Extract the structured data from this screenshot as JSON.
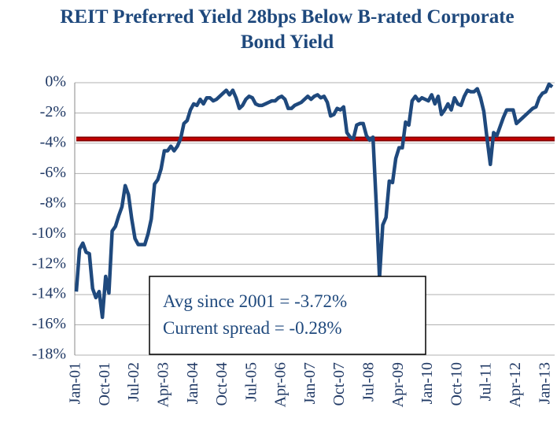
{
  "chart_data": {
    "type": "line",
    "title": "REIT Preferred Yield 28bps Below B-rated Corporate Bond Yield",
    "categories": [
      "Jan-01",
      null,
      null,
      null,
      null,
      null,
      null,
      null,
      null,
      "Oct-01",
      null,
      null,
      null,
      null,
      null,
      null,
      null,
      null,
      "Jul-02",
      null,
      null,
      null,
      null,
      null,
      null,
      null,
      null,
      "Apr-03",
      null,
      null,
      null,
      null,
      null,
      null,
      null,
      null,
      "Jan-04",
      null,
      null,
      null,
      null,
      null,
      null,
      null,
      null,
      "Oct-04",
      null,
      null,
      null,
      null,
      null,
      null,
      null,
      null,
      "Jul-05",
      null,
      null,
      null,
      null,
      null,
      null,
      null,
      null,
      "Apr-06",
      null,
      null,
      null,
      null,
      null,
      null,
      null,
      null,
      "Jan-07",
      null,
      null,
      null,
      null,
      null,
      null,
      null,
      null,
      "Oct-07",
      null,
      null,
      null,
      null,
      null,
      null,
      null,
      null,
      "Jul-08",
      null,
      null,
      null,
      null,
      null,
      null,
      null,
      null,
      "Apr-09",
      null,
      null,
      null,
      null,
      null,
      null,
      null,
      null,
      "Jan-10",
      null,
      null,
      null,
      null,
      null,
      null,
      null,
      null,
      "Oct-10",
      null,
      null,
      null,
      null,
      null,
      null,
      null,
      null,
      "Jul-11",
      null,
      null,
      null,
      null,
      null,
      null,
      null,
      null,
      "Apr-12",
      null,
      null,
      null,
      null,
      null,
      null,
      null,
      null,
      "Jan-13",
      null,
      null
    ],
    "series": [
      {
        "color": "#1f497d",
        "values": [
          -13.8,
          -11,
          -10.6,
          -11.2,
          -11.3,
          -13.6,
          -14.2,
          -13.8,
          -15.5,
          -12.8,
          -13.9,
          -9.8,
          -9.5,
          -8.8,
          -8.2,
          -6.8,
          -7.4,
          -9,
          -10.3,
          -10.7,
          -10.7,
          -10.7,
          -10,
          -9,
          -6.7,
          -6.4,
          -5.7,
          -4.5,
          -4.5,
          -4.2,
          -4.5,
          -4.2,
          -3.7,
          -2.7,
          -2.5,
          -1.8,
          -1.4,
          -1.5,
          -1.1,
          -1.4,
          -1,
          -1,
          -1.2,
          -1.1,
          -0.9,
          -0.7,
          -0.5,
          -0.8,
          -0.5,
          -1,
          -1.7,
          -1.5,
          -1.1,
          -0.9,
          -1,
          -1.4,
          -1.5,
          -1.5,
          -1.4,
          -1.3,
          -1.2,
          -1.2,
          -1,
          -0.9,
          -1.1,
          -1.7,
          -1.7,
          -1.5,
          -1.4,
          -1.3,
          -1.1,
          -0.9,
          -1.1,
          -0.9,
          -0.8,
          -1,
          -0.9,
          -1.3,
          -2.2,
          -2.1,
          -1.7,
          -1.8,
          -1.6,
          -3.3,
          -3.6,
          -3.7,
          -2.8,
          -2.7,
          -2.7,
          -3.5,
          -3.8,
          -3.6,
          -8,
          -12.9,
          -9.4,
          -8.9,
          -6.5,
          -6.6,
          -5,
          -4.3,
          -4.3,
          -2.6,
          -2.8,
          -1.2,
          -0.9,
          -1.2,
          -1,
          -1.1,
          -1.2,
          -0.8,
          -1.4,
          -0.9,
          -2.1,
          -1.8,
          -1.4,
          -1.8,
          -1,
          -1.4,
          -1.5,
          -0.9,
          -0.5,
          -0.6,
          -0.6,
          -0.4,
          -1,
          -1.9,
          -3.7,
          -5.4,
          -3.3,
          -3.5,
          -2.9,
          -2.3,
          -1.8,
          -1.8,
          -1.8,
          -2.7,
          -2.5,
          -2.3,
          -2.1,
          -1.9,
          -1.7,
          -1.6,
          -1,
          -0.7,
          -0.6,
          -0.1,
          -0.28
        ]
      }
    ],
    "reference_line": {
      "value": -3.72,
      "color": "#c00000"
    },
    "annotations": [
      "Avg since 2001 = -3.72%",
      "Current spread = -0.28%"
    ],
    "ylim": [
      -18,
      0
    ],
    "yticks": [
      {
        "value": 0,
        "label": "0%"
      },
      {
        "value": -2,
        "label": "-2%"
      },
      {
        "value": -4,
        "label": "-4%"
      },
      {
        "value": -6,
        "label": "-6%"
      },
      {
        "value": -8,
        "label": "-8%"
      },
      {
        "value": -10,
        "label": "-10%"
      },
      {
        "value": -12,
        "label": "-12%"
      },
      {
        "value": -14,
        "label": "-14%"
      },
      {
        "value": -16,
        "label": "-16%"
      },
      {
        "value": -18,
        "label": "-18%"
      }
    ],
    "grid": true
  }
}
